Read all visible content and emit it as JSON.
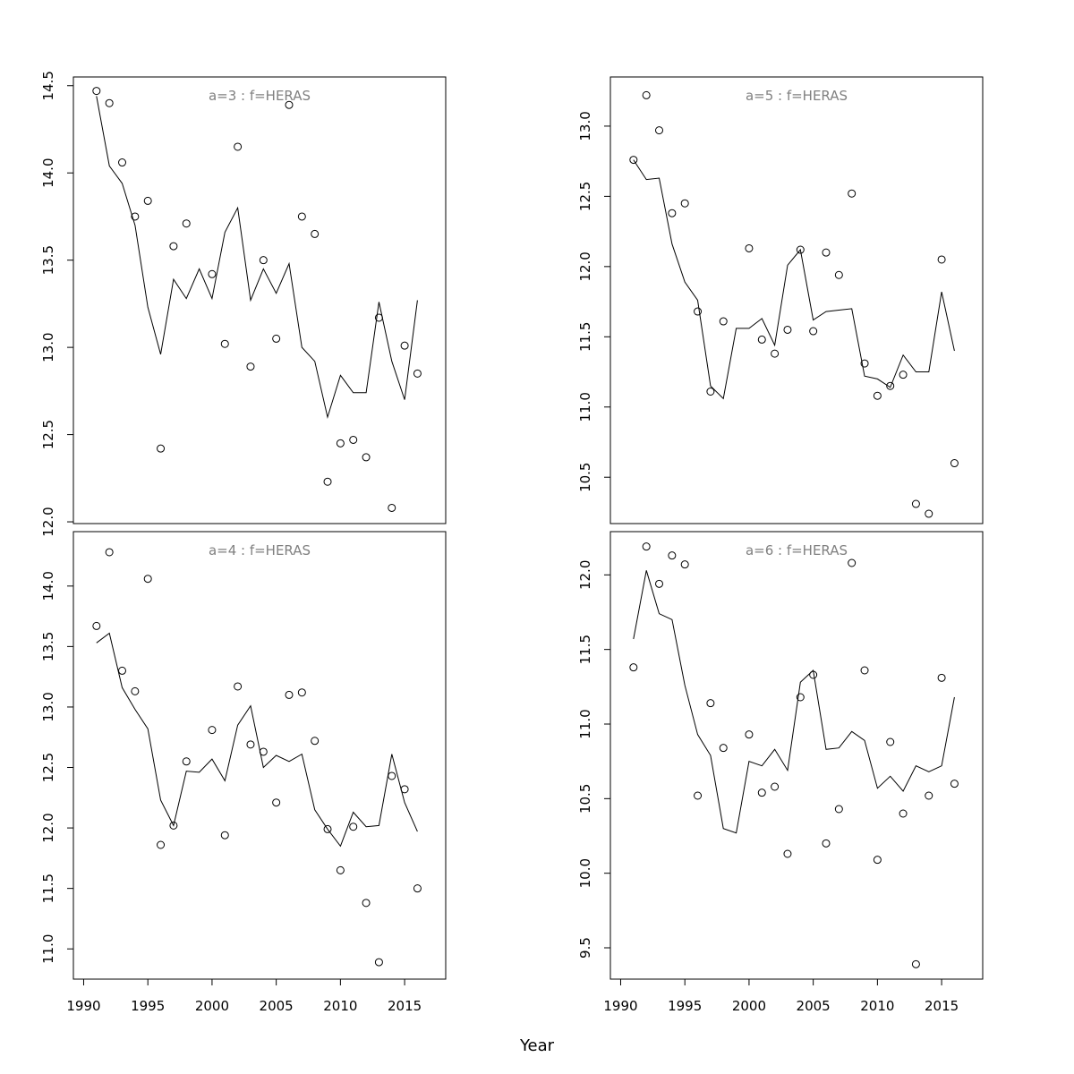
{
  "figure": {
    "xlabel": "Year"
  },
  "chart_data": [
    {
      "type": "scatter",
      "title": "a=3  :  f=HERAS",
      "xlim": [
        1989.2,
        2018.2
      ],
      "ylim": [
        11.99,
        14.55
      ],
      "x_ticks": [
        "1990",
        "1995",
        "2000",
        "2005",
        "2010",
        "2015"
      ],
      "y_ticks": [
        "12.0",
        "12.5",
        "13.0",
        "13.5",
        "14.0",
        "14.5"
      ],
      "x_ticks_shown": false,
      "x": [
        1991,
        1992,
        1993,
        1994,
        1995,
        1996,
        1997,
        1998,
        1999,
        2000,
        2001,
        2002,
        2003,
        2004,
        2005,
        2006,
        2007,
        2008,
        2009,
        2010,
        2011,
        2012,
        2013,
        2014,
        2015,
        2016
      ],
      "series": [
        {
          "mark": "points",
          "values": [
            14.47,
            14.4,
            14.06,
            13.75,
            13.84,
            12.42,
            13.58,
            13.71,
            null,
            13.42,
            13.02,
            14.15,
            12.89,
            13.5,
            13.05,
            14.39,
            13.75,
            13.65,
            12.23,
            12.45,
            12.47,
            12.37,
            13.17,
            12.08,
            13.01,
            12.85
          ]
        },
        {
          "mark": "line",
          "values": [
            14.44,
            14.04,
            13.94,
            13.7,
            13.23,
            12.96,
            13.39,
            13.28,
            13.45,
            13.28,
            13.66,
            13.8,
            13.27,
            13.45,
            13.31,
            13.48,
            13.0,
            12.92,
            12.6,
            12.84,
            12.74,
            12.74,
            13.26,
            12.92,
            12.7,
            13.27
          ]
        }
      ]
    },
    {
      "type": "scatter",
      "title": "a=5  :  f=HERAS",
      "xlim": [
        1989.2,
        2018.2
      ],
      "ylim": [
        10.17,
        13.35
      ],
      "x_ticks": [
        "1990",
        "1995",
        "2000",
        "2005",
        "2010",
        "2015"
      ],
      "y_ticks": [
        "10.5",
        "11.0",
        "11.5",
        "12.0",
        "12.5",
        "13.0"
      ],
      "x_ticks_shown": false,
      "x": [
        1991,
        1992,
        1993,
        1994,
        1995,
        1996,
        1997,
        1998,
        1999,
        2000,
        2001,
        2002,
        2003,
        2004,
        2005,
        2006,
        2007,
        2008,
        2009,
        2010,
        2011,
        2012,
        2013,
        2014,
        2015,
        2016
      ],
      "series": [
        {
          "mark": "points",
          "values": [
            12.76,
            13.22,
            12.97,
            12.38,
            12.45,
            11.68,
            11.11,
            11.61,
            null,
            12.13,
            11.48,
            11.38,
            11.55,
            12.12,
            11.54,
            12.1,
            11.94,
            12.52,
            11.31,
            11.08,
            11.15,
            11.23,
            10.31,
            10.24,
            12.05,
            10.6
          ]
        },
        {
          "mark": "line",
          "values": [
            12.76,
            12.62,
            12.63,
            12.16,
            11.89,
            11.76,
            11.15,
            11.06,
            11.56,
            11.56,
            11.63,
            11.44,
            12.01,
            12.12,
            11.62,
            11.68,
            11.69,
            11.7,
            11.22,
            11.2,
            11.14,
            11.37,
            11.25,
            11.25,
            11.82,
            11.4
          ]
        }
      ]
    },
    {
      "type": "scatter",
      "title": "a=4  :  f=HERAS",
      "xlim": [
        1989.2,
        2018.2
      ],
      "ylim": [
        10.75,
        14.45
      ],
      "x_ticks": [
        "1990",
        "1995",
        "2000",
        "2005",
        "2010",
        "2015"
      ],
      "y_ticks": [
        "11.0",
        "11.5",
        "12.0",
        "12.5",
        "13.0",
        "13.5",
        "14.0"
      ],
      "x_ticks_shown": true,
      "x": [
        1991,
        1992,
        1993,
        1994,
        1995,
        1996,
        1997,
        1998,
        1999,
        2000,
        2001,
        2002,
        2003,
        2004,
        2005,
        2006,
        2007,
        2008,
        2009,
        2010,
        2011,
        2012,
        2013,
        2014,
        2015,
        2016
      ],
      "series": [
        {
          "mark": "points",
          "values": [
            13.67,
            14.28,
            13.3,
            13.13,
            14.06,
            11.86,
            12.02,
            12.55,
            null,
            12.81,
            11.94,
            13.17,
            12.69,
            12.63,
            12.21,
            13.1,
            13.12,
            12.72,
            11.99,
            11.65,
            12.01,
            11.38,
            10.89,
            12.43,
            12.32,
            11.5
          ]
        },
        {
          "mark": "line",
          "values": [
            13.53,
            13.61,
            13.16,
            12.98,
            12.82,
            12.23,
            12.02,
            12.47,
            12.46,
            12.57,
            12.39,
            12.85,
            13.01,
            12.5,
            12.6,
            12.55,
            12.61,
            12.15,
            11.99,
            11.85,
            12.13,
            12.01,
            12.02,
            12.61,
            12.21,
            11.97
          ]
        }
      ]
    },
    {
      "type": "scatter",
      "title": "a=6  :  f=HERAS",
      "xlim": [
        1989.2,
        2018.2
      ],
      "ylim": [
        9.29,
        12.29
      ],
      "x_ticks": [
        "1990",
        "1995",
        "2000",
        "2005",
        "2010",
        "2015"
      ],
      "y_ticks": [
        "9.5",
        "10.0",
        "10.5",
        "11.0",
        "11.5",
        "12.0"
      ],
      "x_ticks_shown": true,
      "x": [
        1991,
        1992,
        1993,
        1994,
        1995,
        1996,
        1997,
        1998,
        1999,
        2000,
        2001,
        2002,
        2003,
        2004,
        2005,
        2006,
        2007,
        2008,
        2009,
        2010,
        2011,
        2012,
        2013,
        2014,
        2015,
        2016
      ],
      "series": [
        {
          "mark": "points",
          "values": [
            11.38,
            12.19,
            11.94,
            12.13,
            12.07,
            10.52,
            11.14,
            10.84,
            null,
            10.93,
            10.54,
            10.58,
            10.13,
            11.18,
            11.33,
            10.2,
            10.43,
            12.08,
            11.36,
            10.09,
            10.88,
            10.4,
            9.39,
            10.52,
            11.31,
            10.6
          ]
        },
        {
          "mark": "line",
          "values": [
            11.57,
            12.03,
            11.74,
            11.7,
            11.26,
            10.93,
            10.79,
            10.3,
            10.27,
            10.75,
            10.72,
            10.83,
            10.69,
            11.28,
            11.36,
            10.83,
            10.84,
            10.95,
            10.89,
            10.57,
            10.65,
            10.55,
            10.72,
            10.68,
            10.72,
            11.18
          ]
        }
      ]
    }
  ]
}
